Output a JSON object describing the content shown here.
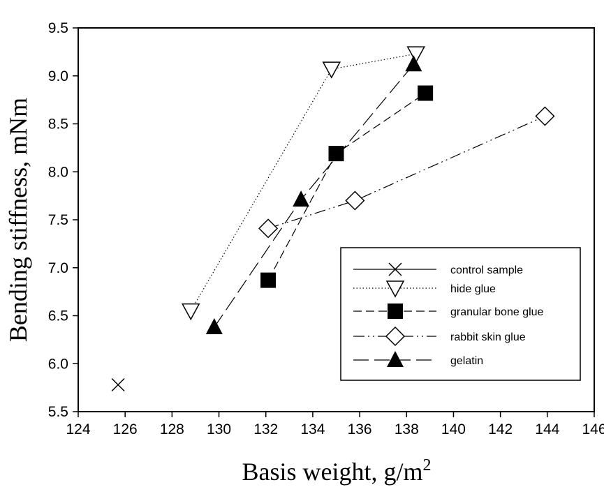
{
  "chart_data": {
    "type": "line",
    "title": "",
    "xlabel": "Basis weight, g/m",
    "xlabel_superscript": "2",
    "ylabel": "Bending stiffness, mNm",
    "xlim": [
      124,
      146
    ],
    "ylim": [
      5.5,
      9.5
    ],
    "xticks": [
      "124",
      "126",
      "128",
      "130",
      "132",
      "134",
      "136",
      "138",
      "140",
      "142",
      "144",
      "146"
    ],
    "yticks": [
      "5.5",
      "6.0",
      "6.5",
      "7.0",
      "7.5",
      "8.0",
      "8.5",
      "9.0",
      "9.5"
    ],
    "grid": false,
    "legend_position": "bottom-right",
    "series": [
      {
        "name": "control sample",
        "marker": "x",
        "line": "solid",
        "points": [
          [
            125.7,
            5.78
          ]
        ]
      },
      {
        "name": "hide glue",
        "marker": "triangle-down-open",
        "line": "dotted",
        "points": [
          [
            128.8,
            6.55
          ],
          [
            134.8,
            9.07
          ],
          [
            138.4,
            9.23
          ]
        ]
      },
      {
        "name": "granular bone glue",
        "marker": "square-filled",
        "line": "dashed",
        "points": [
          [
            132.1,
            6.87
          ],
          [
            135.0,
            8.19
          ],
          [
            138.8,
            8.82
          ]
        ]
      },
      {
        "name": "rabbit skin glue",
        "marker": "diamond-open",
        "line": "dash-dot-dot",
        "points": [
          [
            132.1,
            7.41
          ],
          [
            135.8,
            7.7
          ],
          [
            143.9,
            8.58
          ]
        ]
      },
      {
        "name": "gelatin",
        "marker": "triangle-up-filled",
        "line": "long-dash",
        "points": [
          [
            129.8,
            6.38
          ],
          [
            133.5,
            7.71
          ],
          [
            138.3,
            9.12
          ]
        ]
      }
    ]
  }
}
